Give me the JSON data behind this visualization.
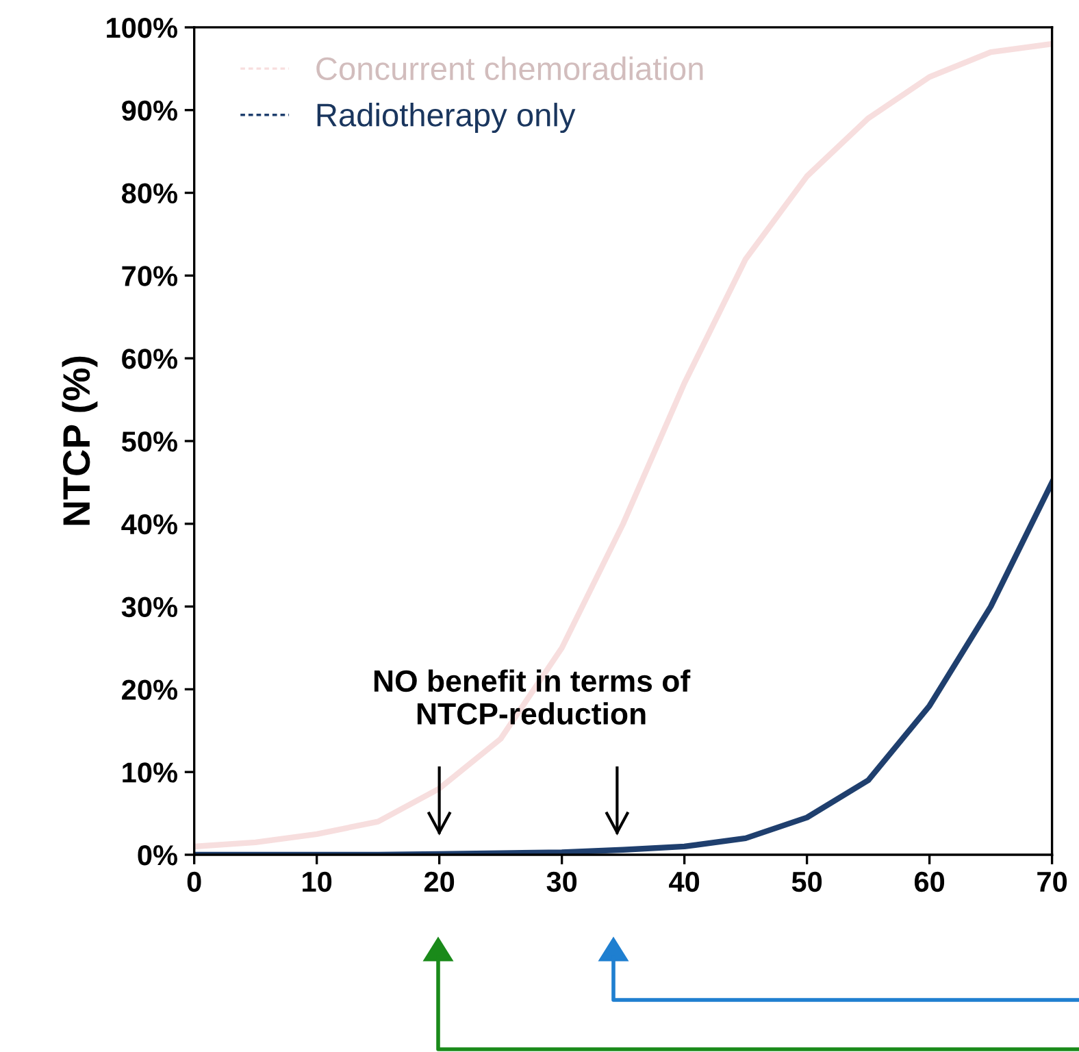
{
  "chart_data": {
    "type": "line",
    "ylabel": "NTCP (%)",
    "x": [
      0,
      5,
      10,
      15,
      20,
      25,
      30,
      35,
      40,
      45,
      50,
      55,
      60,
      65,
      70
    ],
    "series": [
      {
        "name": "Concurrent chemoradiation",
        "color": "#f7dede",
        "values": [
          1,
          1.5,
          2.5,
          4,
          8,
          14,
          25,
          40,
          57,
          72,
          82,
          89,
          94,
          97,
          98
        ]
      },
      {
        "name": "Radiotherapy only",
        "color": "#1f3f6e",
        "values": [
          0,
          0,
          0,
          0,
          0.1,
          0.2,
          0.3,
          0.6,
          1,
          2,
          4.5,
          9,
          18,
          30,
          45
        ]
      }
    ],
    "xlim": [
      0,
      70
    ],
    "xticks": [
      0,
      10,
      20,
      30,
      40,
      50,
      60,
      70
    ],
    "ylim": [
      0,
      100
    ],
    "yticks": [
      {
        "value": 0,
        "label": "0%"
      },
      {
        "value": 10,
        "label": "10%"
      },
      {
        "value": 20,
        "label": "20%"
      },
      {
        "value": 30,
        "label": "30%"
      },
      {
        "value": 40,
        "label": "40%"
      },
      {
        "value": 50,
        "label": "50%"
      },
      {
        "value": 60,
        "label": "60%"
      },
      {
        "value": 70,
        "label": "70%"
      },
      {
        "value": 80,
        "label": "80%"
      },
      {
        "value": 90,
        "label": "90%"
      },
      {
        "value": 100,
        "label": "100%"
      }
    ],
    "legend": "top left",
    "grid": false,
    "annotations": [
      "NO benefit in terms of\nNTCP-reduction"
    ]
  }
}
